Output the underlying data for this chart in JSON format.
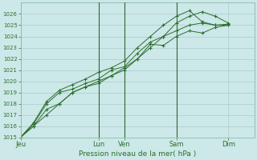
{
  "background_color": "#cce8e8",
  "grid_color": "#aacccc",
  "line_color": "#2d6e2d",
  "marker_color": "#2d6e2d",
  "xlabel": "Pression niveau de la mer( hPa )",
  "ylim": [
    1015,
    1027
  ],
  "yticks": [
    1015,
    1016,
    1017,
    1018,
    1019,
    1020,
    1021,
    1022,
    1023,
    1024,
    1025,
    1026
  ],
  "ytick_fontsize": 5,
  "xtick_fontsize": 6,
  "xlabel_fontsize": 6.5,
  "x_tick_labels": [
    "Jeu",
    "Lun",
    "Ven",
    "Sam",
    "Dim"
  ],
  "x_tick_positions": [
    0,
    36,
    48,
    72,
    96
  ],
  "x_vline_positions": [
    36,
    48,
    72
  ],
  "xlim": [
    0,
    108
  ],
  "series": [
    {
      "x": [
        0,
        6,
        12,
        18,
        24,
        30,
        36,
        42,
        48,
        54,
        60,
        66,
        72,
        78,
        84,
        90,
        96
      ],
      "y": [
        1015.0,
        1016.0,
        1017.5,
        1018.0,
        1019.0,
        1019.5,
        1019.8,
        1020.5,
        1021.2,
        1022.0,
        1023.3,
        1023.2,
        1024.0,
        1024.5,
        1024.3,
        1024.8,
        1025.0
      ]
    },
    {
      "x": [
        0,
        6,
        12,
        18,
        24,
        30,
        36,
        42,
        48,
        54,
        60,
        66,
        72,
        78,
        84,
        90,
        96
      ],
      "y": [
        1015.0,
        1016.2,
        1018.0,
        1019.0,
        1019.3,
        1019.8,
        1020.2,
        1021.0,
        1021.3,
        1022.5,
        1023.5,
        1024.0,
        1025.2,
        1025.8,
        1026.2,
        1025.8,
        1025.2
      ]
    },
    {
      "x": [
        0,
        6,
        12,
        18,
        24,
        30,
        36,
        42,
        48,
        54,
        60,
        66,
        72,
        78,
        84,
        90,
        96
      ],
      "y": [
        1015.0,
        1016.3,
        1018.2,
        1019.2,
        1019.7,
        1020.2,
        1020.8,
        1021.2,
        1021.8,
        1023.0,
        1024.0,
        1025.0,
        1025.8,
        1026.3,
        1025.3,
        1025.0,
        1025.1
      ]
    },
    {
      "x": [
        0,
        6,
        12,
        18,
        24,
        30,
        36,
        42,
        48,
        54,
        60,
        66,
        72,
        78,
        84,
        90,
        96
      ],
      "y": [
        1015.0,
        1016.0,
        1017.0,
        1018.0,
        1019.0,
        1019.5,
        1020.0,
        1020.5,
        1021.0,
        1022.0,
        1023.0,
        1024.0,
        1024.5,
        1025.0,
        1025.2,
        1025.0,
        1025.0
      ]
    }
  ],
  "vline_color": "#336633",
  "spine_color": "#88bbaa"
}
